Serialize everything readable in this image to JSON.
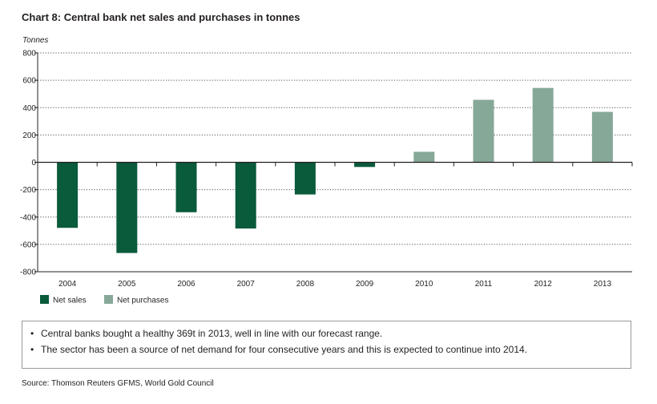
{
  "title": "Chart 8: Central bank net sales and purchases in tonnes",
  "chart_data": {
    "type": "bar",
    "ylabel": "Tonnes",
    "xlabel": "",
    "ylim": [
      -800,
      800
    ],
    "yticks": [
      800,
      600,
      400,
      200,
      0,
      -200,
      -400,
      -600,
      -800
    ],
    "ytick_labels": [
      "800",
      "600",
      "400",
      "200",
      "0",
      "-200",
      "-400",
      "-600",
      "-800"
    ],
    "categories": [
      "2004",
      "2005",
      "2006",
      "2007",
      "2008",
      "2009",
      "2010",
      "2011",
      "2012",
      "2013"
    ],
    "values": [
      -479,
      -663,
      -365,
      -484,
      -235,
      -34,
      77,
      457,
      544,
      369
    ],
    "grid": true,
    "legend_placement": "bottom-left",
    "series": [
      {
        "name": "Net sales",
        "color": "#0a5a3c"
      },
      {
        "name": "Net purchases",
        "color": "#86a898"
      }
    ]
  },
  "notes": [
    "Central banks bought a healthy 369t in 2013, well in line with our forecast range.",
    "The sector has been a source of net demand for four consecutive years and this is expected to continue into 2014."
  ],
  "bullet": "•",
  "source": "Source: Thomson Reuters GFMS, World Gold Council"
}
